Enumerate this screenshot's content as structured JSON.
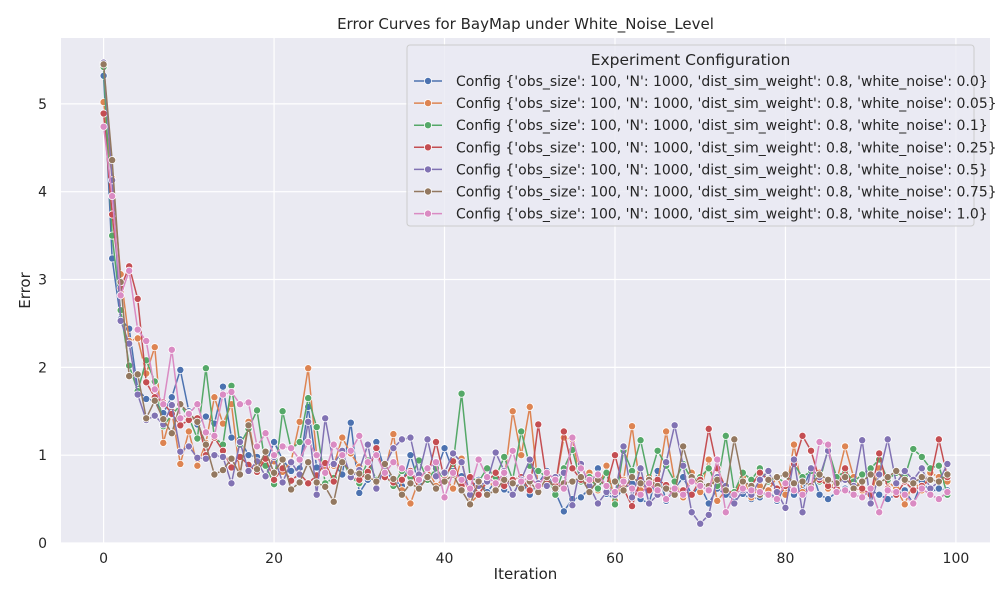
{
  "chart_data": {
    "type": "line",
    "title": "Error Curves for BayMap under White_Noise_Level",
    "xlabel": "Iteration",
    "ylabel": "Error",
    "xlim": [
      -5,
      104
    ],
    "ylim": [
      0,
      5.75
    ],
    "xticks": [
      0,
      20,
      40,
      60,
      80,
      100
    ],
    "yticks": [
      0,
      1,
      2,
      3,
      4,
      5
    ],
    "grid": true,
    "legend_title": "Experiment Configuration",
    "legend_position": "top-right",
    "marker": "circle",
    "series": [
      {
        "name": "Config {'obs_size': 100, 'N': 1000, 'dist_sim_weight': 0.8, 'white_noise': 0.0}",
        "color": "#4c72b0",
        "values": [
          5.32,
          3.24,
          2.55,
          2.44,
          1.75,
          1.64,
          1.62,
          1.48,
          1.66,
          1.97,
          1.5,
          1.35,
          1.44,
          1.36,
          1.78,
          1.2,
          1.18,
          1.0,
          0.98,
          0.9,
          1.15,
          0.95,
          0.82,
          0.85,
          1.55,
          0.86,
          0.88,
          0.9,
          0.78,
          1.37,
          0.57,
          0.72,
          1.15,
          0.82,
          0.72,
          0.65,
          1.0,
          0.68,
          0.75,
          0.8,
          1.08,
          0.82,
          0.76,
          0.62,
          0.72,
          0.58,
          0.7,
          0.61,
          0.55,
          0.72,
          0.55,
          0.68,
          0.82,
          0.58,
          0.36,
          0.5,
          0.52,
          0.62,
          0.85,
          0.56,
          0.5,
          0.62,
          0.68,
          0.5,
          0.45,
          0.82,
          0.48,
          0.62,
          0.75,
          0.55,
          0.65,
          0.45,
          0.62,
          0.55,
          0.5,
          0.56,
          0.5,
          0.52,
          0.6,
          0.48,
          0.65,
          0.55,
          0.6,
          0.85,
          0.55,
          0.5,
          0.58,
          0.62,
          0.55,
          0.52,
          0.6,
          0.55,
          0.5,
          0.55,
          0.6,
          0.45,
          0.7,
          0.58,
          0.62,
          0.6
        ]
      },
      {
        "name": "Config {'obs_size': 100, 'N': 1000, 'dist_sim_weight': 0.8, 'white_noise': 0.05}",
        "color": "#dd8452",
        "values": [
          5.02,
          4.15,
          3.06,
          2.3,
          2.33,
          1.93,
          2.23,
          1.14,
          1.5,
          0.9,
          1.27,
          0.88,
          1.14,
          1.66,
          1.36,
          1.58,
          0.78,
          1.38,
          0.87,
          0.96,
          0.93,
          0.81,
          0.93,
          1.38,
          1.99,
          0.99,
          0.85,
          0.88,
          1.2,
          1.02,
          0.87,
          0.78,
          0.68,
          0.8,
          1.24,
          0.6,
          0.45,
          0.72,
          0.85,
          0.65,
          0.75,
          0.62,
          0.96,
          0.45,
          0.55,
          0.72,
          0.62,
          0.7,
          1.5,
          1.0,
          1.55,
          0.62,
          0.68,
          0.65,
          1.2,
          1.18,
          0.7,
          0.8,
          0.6,
          0.88,
          0.48,
          0.72,
          1.33,
          0.6,
          0.75,
          0.68,
          1.27,
          0.7,
          0.52,
          0.8,
          0.58,
          0.95,
          0.48,
          0.6,
          0.55,
          0.75,
          0.52,
          0.65,
          0.6,
          0.75,
          0.55,
          1.12,
          0.58,
          0.65,
          0.8,
          0.62,
          0.7,
          1.1,
          0.75,
          0.6,
          0.55,
          0.85,
          0.7,
          0.62,
          0.44,
          0.7,
          0.6,
          0.8,
          0.75,
          0.7
        ]
      },
      {
        "name": "Config {'obs_size': 100, 'N': 1000, 'dist_sim_weight': 0.8, 'white_noise': 0.1}",
        "color": "#55a868",
        "values": [
          5.42,
          3.5,
          2.65,
          2.02,
          1.73,
          2.08,
          1.84,
          1.33,
          1.46,
          1.57,
          1.43,
          1.19,
          1.99,
          1.2,
          1.12,
          1.79,
          1.12,
          1.3,
          1.51,
          0.88,
          0.67,
          1.5,
          1.07,
          1.15,
          1.65,
          1.32,
          0.68,
          0.74,
          0.95,
          0.75,
          0.68,
          0.94,
          0.72,
          0.78,
          0.65,
          0.82,
          0.75,
          0.94,
          0.72,
          0.85,
          0.72,
          0.9,
          1.7,
          0.75,
          0.7,
          0.85,
          0.75,
          0.98,
          0.72,
          1.27,
          0.88,
          0.82,
          0.75,
          0.55,
          0.85,
          1.06,
          0.7,
          0.75,
          0.62,
          0.8,
          0.44,
          1.05,
          0.82,
          1.17,
          0.72,
          1.05,
          0.88,
          0.7,
          0.9,
          0.72,
          0.75,
          0.85,
          0.65,
          1.22,
          0.58,
          0.8,
          0.72,
          0.85,
          0.7,
          0.75,
          0.68,
          0.9,
          0.75,
          0.82,
          0.7,
          1.07,
          0.75,
          0.82,
          0.7,
          0.78,
          0.85,
          0.95,
          0.72,
          0.8,
          0.75,
          1.07,
          0.98,
          0.85,
          0.88,
          0.55
        ]
      },
      {
        "name": "Config {'obs_size': 100, 'N': 1000, 'dist_sim_weight': 0.8, 'white_noise': 0.25}",
        "color": "#c44e52",
        "values": [
          4.89,
          3.74,
          2.9,
          3.15,
          2.78,
          1.83,
          1.66,
          1.6,
          1.47,
          1.34,
          1.4,
          1.42,
          1.0,
          1.2,
          1.05,
          0.86,
          0.98,
          0.89,
          0.81,
          0.96,
          0.72,
          0.85,
          0.71,
          0.79,
          0.68,
          0.77,
          0.91,
          0.7,
          1.02,
          0.75,
          0.72,
          0.81,
          1.08,
          0.75,
          0.69,
          0.72,
          0.82,
          0.62,
          0.75,
          1.15,
          0.72,
          0.93,
          0.65,
          0.75,
          0.55,
          0.7,
          0.8,
          0.65,
          0.72,
          0.75,
          0.6,
          1.35,
          0.7,
          0.65,
          1.27,
          0.85,
          0.72,
          0.65,
          0.78,
          0.65,
          1.0,
          0.62,
          0.42,
          0.72,
          0.6,
          0.72,
          0.66,
          0.58,
          0.6,
          0.55,
          0.72,
          1.3,
          0.85,
          0.62,
          0.55,
          0.7,
          0.65,
          0.8,
          0.72,
          0.62,
          0.65,
          0.9,
          1.22,
          1.05,
          0.72,
          0.65,
          0.62,
          0.85,
          0.6,
          0.62,
          0.55,
          1.02,
          0.62,
          0.55,
          0.7,
          0.6,
          0.65,
          0.72,
          1.18,
          0.75
        ]
      },
      {
        "name": "Config {'obs_size': 100, 'N': 1000, 'dist_sim_weight': 0.8, 'white_noise': 0.5}",
        "color": "#8172b3",
        "values": [
          5.47,
          4.13,
          2.53,
          2.27,
          1.69,
          1.4,
          1.45,
          1.35,
          1.57,
          1.04,
          1.1,
          0.97,
          0.96,
          1.0,
          0.98,
          0.68,
          1.15,
          0.82,
          0.93,
          0.76,
          0.98,
          0.69,
          0.92,
          0.78,
          1.38,
          0.55,
          1.42,
          0.9,
          1.05,
          0.75,
          0.83,
          1.12,
          0.62,
          0.88,
          1.08,
          1.18,
          1.2,
          0.78,
          1.18,
          0.76,
          0.8,
          1.02,
          0.92,
          0.55,
          0.65,
          0.7,
          1.03,
          0.82,
          0.55,
          0.72,
          0.95,
          0.68,
          0.65,
          0.75,
          0.8,
          0.43,
          0.9,
          0.65,
          0.45,
          0.58,
          0.55,
          1.1,
          0.52,
          0.85,
          0.45,
          0.55,
          0.92,
          1.34,
          0.88,
          0.35,
          0.22,
          0.32,
          0.75,
          0.65,
          0.45,
          0.6,
          0.55,
          0.72,
          0.82,
          0.58,
          0.4,
          0.95,
          0.35,
          0.85,
          0.75,
          1.05,
          0.68,
          0.72,
          0.65,
          1.17,
          0.45,
          0.78,
          1.18,
          0.68,
          0.82,
          0.72,
          0.85,
          0.62,
          0.7,
          0.9
        ]
      },
      {
        "name": "Config {'obs_size': 100, 'N': 1000, 'dist_sim_weight': 0.8, 'white_noise': 0.75}",
        "color": "#937860",
        "values": [
          5.45,
          4.36,
          2.97,
          1.9,
          1.92,
          1.42,
          1.62,
          1.41,
          1.25,
          1.58,
          1.48,
          1.38,
          1.12,
          0.78,
          0.83,
          0.96,
          0.78,
          1.34,
          0.84,
          1.04,
          0.8,
          0.95,
          0.61,
          0.69,
          0.92,
          0.69,
          0.64,
          0.47,
          0.92,
          0.81,
          0.79,
          0.75,
          0.7,
          0.9,
          0.73,
          0.55,
          0.68,
          0.62,
          0.75,
          0.62,
          0.7,
          0.78,
          0.6,
          0.44,
          0.7,
          0.55,
          0.6,
          0.72,
          0.68,
          0.62,
          0.7,
          0.58,
          0.75,
          0.62,
          0.68,
          0.7,
          0.75,
          0.58,
          0.72,
          0.65,
          0.7,
          0.6,
          0.75,
          0.68,
          0.72,
          0.65,
          0.62,
          0.55,
          1.1,
          0.75,
          0.68,
          0.65,
          0.72,
          0.6,
          1.18,
          0.7,
          0.65,
          0.55,
          0.72,
          0.75,
          0.78,
          0.68,
          0.7,
          0.65,
          0.78,
          0.72,
          0.68,
          0.75,
          0.62,
          0.7,
          0.78,
          0.68,
          0.75,
          0.82,
          0.72,
          0.68,
          0.75,
          0.72,
          0.7,
          0.78
        ]
      },
      {
        "name": "Config {'obs_size': 100, 'N': 1000, 'dist_sim_weight': 0.8, 'white_noise': 1.0}",
        "color": "#da8bc3",
        "values": [
          4.74,
          3.95,
          2.82,
          3.1,
          2.43,
          2.3,
          1.75,
          1.58,
          2.2,
          1.42,
          1.47,
          1.58,
          1.26,
          1.22,
          1.69,
          1.72,
          1.58,
          1.6,
          1.1,
          1.25,
          1.0,
          1.1,
          1.08,
          0.95,
          1.15,
          1.0,
          0.8,
          1.12,
          1.0,
          1.05,
          1.22,
          0.92,
          1.0,
          0.8,
          0.92,
          0.85,
          0.8,
          0.72,
          0.85,
          0.92,
          0.52,
          0.8,
          0.72,
          0.62,
          0.95,
          0.75,
          0.68,
          0.8,
          1.05,
          0.7,
          0.75,
          0.65,
          0.8,
          0.72,
          0.62,
          1.2,
          0.85,
          0.72,
          0.78,
          0.65,
          0.58,
          0.7,
          0.62,
          0.55,
          0.68,
          0.6,
          0.5,
          0.62,
          0.55,
          0.7,
          0.65,
          0.6,
          0.95,
          0.35,
          0.55,
          0.62,
          0.6,
          0.58,
          0.55,
          0.5,
          0.68,
          0.6,
          0.55,
          0.62,
          1.15,
          1.12,
          0.58,
          0.6,
          0.55,
          0.52,
          0.62,
          0.35,
          0.6,
          0.58,
          0.55,
          0.45,
          0.62,
          0.55,
          0.5,
          0.58
        ]
      }
    ]
  }
}
